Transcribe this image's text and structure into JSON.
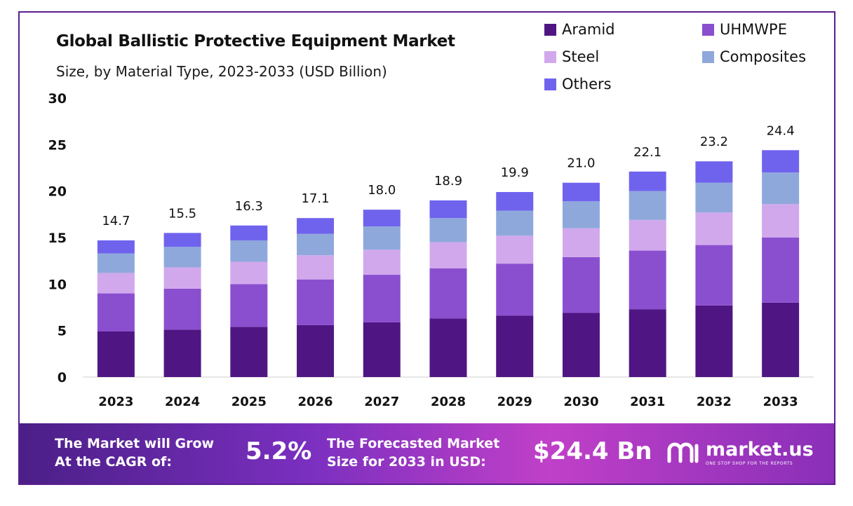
{
  "chart_data": {
    "type": "bar",
    "stacked": true,
    "title": "Global Ballistic Protective Equipment Market",
    "subtitle": "Size, by Material Type, 2023-2033 (USD Billion)",
    "xlabel": "",
    "ylabel": "",
    "ylim": [
      0,
      30
    ],
    "yticks": [
      0,
      5,
      10,
      15,
      20,
      25,
      30
    ],
    "grid": false,
    "legend_position": "top-right",
    "categories": [
      "2023",
      "2024",
      "2025",
      "2026",
      "2027",
      "2028",
      "2029",
      "2030",
      "2031",
      "2032",
      "2033"
    ],
    "totals": [
      "14.7",
      "15.5",
      "16.3",
      "17.1",
      "18.0",
      "18.9",
      "19.9",
      "21.0",
      "22.1",
      "23.2",
      "24.4"
    ],
    "series": [
      {
        "name": "Aramid",
        "color": "#4f1683",
        "values": [
          4.9,
          5.1,
          5.4,
          5.6,
          5.9,
          6.3,
          6.6,
          6.9,
          7.3,
          7.7,
          8.0
        ]
      },
      {
        "name": "UHMWPE",
        "color": "#8a4fcf",
        "values": [
          4.1,
          4.4,
          4.6,
          4.9,
          5.1,
          5.4,
          5.6,
          6.0,
          6.3,
          6.5,
          7.0
        ]
      },
      {
        "name": "Steel",
        "color": "#d1a8ec",
        "values": [
          2.2,
          2.3,
          2.4,
          2.6,
          2.7,
          2.8,
          3.0,
          3.1,
          3.3,
          3.5,
          3.6
        ]
      },
      {
        "name": "Composites",
        "color": "#8fa8dc",
        "values": [
          2.1,
          2.2,
          2.3,
          2.3,
          2.5,
          2.6,
          2.7,
          2.9,
          3.1,
          3.2,
          3.4
        ]
      },
      {
        "name": "Others",
        "color": "#6f63ee",
        "values": [
          1.4,
          1.5,
          1.6,
          1.7,
          1.8,
          1.9,
          2.0,
          2.0,
          2.1,
          2.3,
          2.4
        ]
      }
    ]
  },
  "footer": {
    "cagr_line1": "The Market will Grow",
    "cagr_line2": "At the CAGR of:",
    "cagr_value": "5.2%",
    "forecast_line1": "The Forecasted Market",
    "forecast_line2": "Size for 2033 in USD:",
    "forecast_value": "$24.4 Bn",
    "brand_name": "market.us",
    "brand_tagline": "ONE STOP SHOP FOR THE REPORTS"
  }
}
